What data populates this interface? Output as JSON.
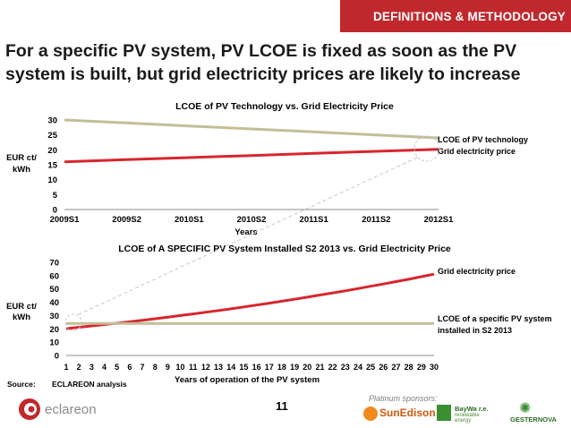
{
  "header": {
    "section_label": "DEFINITIONS & METHODOLOGY",
    "headline": "For a specific PV system, PV LCOE is fixed as soon as the PV system is built, but grid electricity prices are likely to increase"
  },
  "chart_data": [
    {
      "type": "line",
      "title": "LCOE of PV Technology vs. Grid Electricity Price",
      "xlabel": "Years",
      "ylabel": "EUR ct/ kWh",
      "ylabel_lines": [
        "EUR ct/",
        "kWh"
      ],
      "categories": [
        "2009S1",
        "2009S2",
        "2010S1",
        "2010S2",
        "2011S1",
        "2011S2",
        "2012S1"
      ],
      "ylim": [
        0,
        30
      ],
      "yticks": [
        "0",
        "5",
        "10",
        "15",
        "20",
        "25",
        "30"
      ],
      "grid": false,
      "series": [
        {
          "name": "LCOE of PV technology",
          "color": "#c4bd97",
          "values": [
            30,
            29,
            28,
            27,
            26,
            25,
            24
          ]
        },
        {
          "name": "Grid electricity price",
          "color": "#d7262e",
          "values": [
            16,
            16.7,
            17.4,
            18.1,
            18.8,
            19.5,
            20.2
          ]
        }
      ],
      "legend": "right"
    },
    {
      "type": "line",
      "title": "LCOE of A SPECIFIC PV System Installed S2 2013 vs. Grid Electricity Price",
      "xlabel": "Years of operation of the PV system",
      "ylabel": "EUR ct/ kWh",
      "ylabel_lines": [
        "EUR ct/",
        "kWh"
      ],
      "categories": [
        "1",
        "2",
        "3",
        "4",
        "5",
        "6",
        "7",
        "8",
        "9",
        "10",
        "11",
        "12",
        "13",
        "14",
        "15",
        "16",
        "17",
        "18",
        "19",
        "20",
        "21",
        "22",
        "23",
        "24",
        "25",
        "26",
        "27",
        "28",
        "29",
        "30"
      ],
      "ylim": [
        0,
        70
      ],
      "yticks": [
        "0",
        "10",
        "20",
        "30",
        "40",
        "50",
        "60",
        "70"
      ],
      "grid": false,
      "series": [
        {
          "name": "Grid electricity price",
          "label_lines": [
            "Grid electricity price"
          ],
          "color": "#d7262e",
          "values": [
            20.2,
            21.2,
            22.2,
            23.2,
            24.2,
            25.3,
            26.4,
            27.6,
            28.8,
            30.0,
            31.2,
            32.5,
            33.8,
            35.1,
            36.5,
            37.9,
            39.3,
            40.8,
            42.3,
            43.8,
            45.4,
            47.0,
            48.6,
            50.3,
            52.0,
            53.7,
            55.5,
            57.3,
            59.2,
            61.1
          ]
        },
        {
          "name": "LCOE of a specific PV system installed in S2 2013",
          "label_lines": [
            "LCOE of a specific PV system",
            "installed in S2 2013"
          ],
          "color": "#c4bd97",
          "values": [
            24,
            24,
            24,
            24,
            24,
            24,
            24,
            24,
            24,
            24,
            24,
            24,
            24,
            24,
            24,
            24,
            24,
            24,
            24,
            24,
            24,
            24,
            24,
            24,
            24,
            24,
            24,
            24,
            24,
            24
          ]
        }
      ],
      "legend": "right"
    }
  ],
  "footer": {
    "source_label": "Source:",
    "source_value": "ECLAREON analysis",
    "page_number": "11",
    "sponsors_label": "Platinum sponsors:",
    "logos": {
      "eclareon": "eclareon",
      "sunedison": "SunEdison",
      "baywa_line1": "BayWa r.e.",
      "baywa_line2": "renewable energy",
      "gesternova": "GESTERNOVA"
    }
  }
}
